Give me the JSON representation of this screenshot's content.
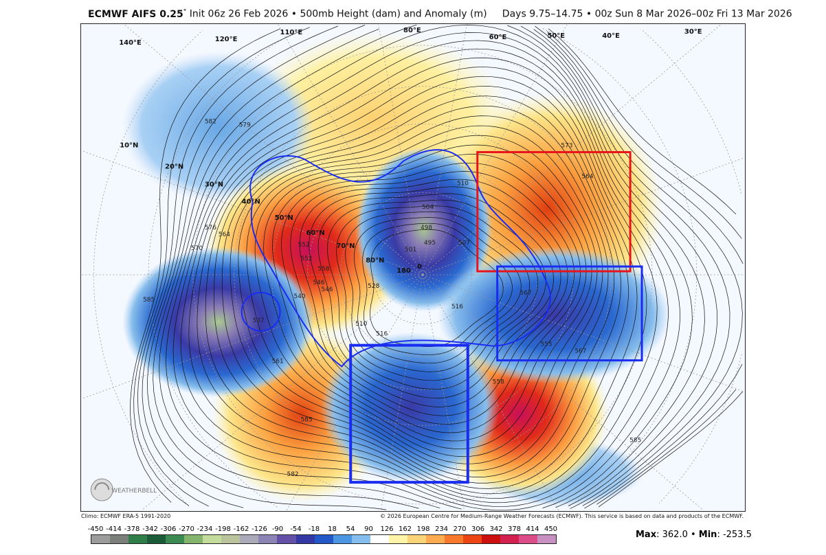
{
  "title": {
    "model": "ECMWF AIFS 0.25",
    "degree": "°",
    "rest": " Init 06z 26 Feb 2026 • 500mb Height (dam) and Anomaly (m)     Days 9.75–14.75 • 00z Sun 8 Mar 2026–00z Fri 13 Mar 2026"
  },
  "credits": {
    "climo": "Climo: ECMWF ERA-5 1991-2020",
    "copyright": "© 2026 European Centre for Medium-Range Weather Forecasts (ECMWF). This service is based on data and products of the ECMWF.",
    "logo": "WeatherBELL"
  },
  "colorbar": {
    "labels": [
      "-450",
      "-414",
      "-378",
      "-342",
      "-306",
      "-270",
      "-234",
      "-198",
      "-162",
      "-126",
      "-90",
      "-54",
      "-18",
      "18",
      "54",
      "90",
      "126",
      "162",
      "198",
      "234",
      "270",
      "306",
      "342",
      "378",
      "414",
      "450"
    ],
    "colors": [
      "#9c9c9c",
      "#7a7f7a",
      "#2f7d48",
      "#1b5b38",
      "#3a8a52",
      "#84b46e",
      "#c3dc9e",
      "#b9c49c",
      "#a9a9b9",
      "#8d84b6",
      "#6550a8",
      "#3438a4",
      "#2458c8",
      "#4a96e2",
      "#85bdec",
      "#ffffff",
      "#fff4a8",
      "#fdd478",
      "#fdaa50",
      "#f8782c",
      "#ec4412",
      "#cc1010",
      "#d4204e",
      "#dc4c88",
      "#c890c0"
    ]
  },
  "stats": {
    "max_label": "Max",
    "max": "362.0",
    "min_label": "Min",
    "min": "-253.5",
    "sep": " • "
  },
  "map": {
    "lat_labels": [
      "10°N",
      "20°N",
      "30°N",
      "40°N",
      "50°N",
      "60°N",
      "70°N",
      "80°N"
    ],
    "lon_labels": [
      "180",
      "0",
      "140°E",
      "120°E",
      "110°E",
      "80°E",
      "60°E",
      "50°E",
      "40°E",
      "30°E"
    ],
    "contour_labels": [
      "582",
      "579",
      "576",
      "570",
      "564",
      "585",
      "537",
      "540",
      "546",
      "552",
      "558",
      "567",
      "573",
      "561",
      "555",
      "528",
      "516",
      "510",
      "504",
      "498",
      "495",
      "507",
      "501",
      "564",
      "546",
      "552",
      "567",
      "585",
      "558",
      "582",
      "585",
      "510",
      "516"
    ],
    "regions": [
      {
        "color": "#e8141c"
      },
      {
        "color": "#1a2cf0"
      },
      {
        "color": "#1a2cf0"
      }
    ]
  }
}
